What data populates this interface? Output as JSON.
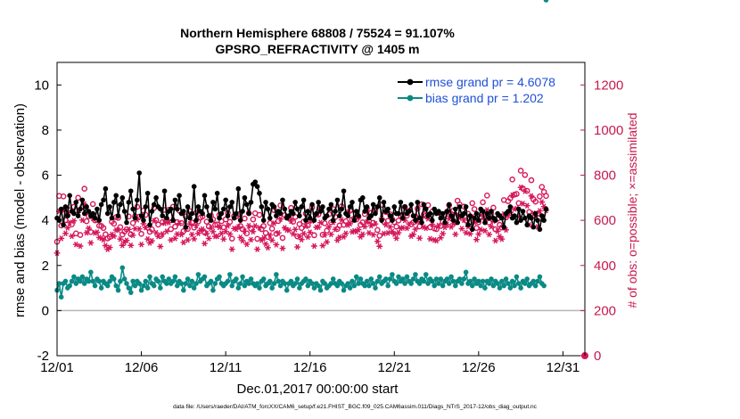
{
  "chart_data": {
    "type": "line",
    "title_line1": "Northern Hemisphere 68808 / 75524 = 91.107%",
    "title_line2": "GPSRO_REFRACTIVITY @ 1405 m",
    "xlabel": "Dec.01,2017 00:00:00 start",
    "ylabel": "rmse and bias (model - observation)",
    "ylabel_right": "# of obs: o=possible; ×=assimilated",
    "ylim": [
      -2,
      11
    ],
    "ylim_right": [
      0,
      1300
    ],
    "xlim": [
      1,
      32.3
    ],
    "yticks": [
      "-2",
      "0",
      "2",
      "4",
      "6",
      "8",
      "10"
    ],
    "yticks_right": [
      "0",
      "200",
      "400",
      "600",
      "800",
      "1000",
      "1200"
    ],
    "xticks": [
      {
        "day": 1,
        "label": "12/01"
      },
      {
        "day": 6,
        "label": "12/06"
      },
      {
        "day": 11,
        "label": "12/11"
      },
      {
        "day": 16,
        "label": "12/16"
      },
      {
        "day": 21,
        "label": "12/21"
      },
      {
        "day": 26,
        "label": "12/26"
      },
      {
        "day": 31,
        "label": "12/31"
      }
    ],
    "footnote": "data file: /Users/raeder/DAI/ATM_forcXX/CAM6_setup/f.e21.FHIST_BGC.f09_025.CAM6assim.011/Diags_NTrS_2017-12/obs_diag_output.nc",
    "colors": {
      "rmse": "#000000",
      "bias": "#0a8a85",
      "obs": "#d6175a",
      "legend_text": "#1f4fd8",
      "right_axis": "#c8184e",
      "zero_line": "#b5b5b5"
    },
    "series": [
      {
        "name": "rmse grand pr = 4.6078",
        "values": [
          4.1,
          4.0,
          4.5,
          3.8,
          4.6,
          4.2,
          5.1,
          4.4,
          4.3,
          4.8,
          4.2,
          4.5,
          4.9,
          4.3,
          4.6,
          4.4,
          4.2,
          4.3,
          4.1,
          4.5,
          4.0,
          4.7,
          4.9,
          5.4,
          4.3,
          4.6,
          4.1,
          4.8,
          5.1,
          4.2,
          4.7,
          5.0,
          4.4,
          3.9,
          4.8,
          5.3,
          4.5,
          4.1,
          4.9,
          6.1,
          4.2,
          4.0,
          4.6,
          5.2,
          3.8,
          4.4,
          4.7,
          5.0,
          4.6,
          4.5,
          4.2,
          5.3,
          4.1,
          4.4,
          4.5,
          4.0,
          4.9,
          4.5,
          5.1,
          4.3,
          4.4,
          3.7,
          4.6,
          4.1,
          4.3,
          5.5,
          4.0,
          4.6,
          4.4,
          4.3,
          5.1,
          4.6,
          4.2,
          4.0,
          4.8,
          4.5,
          5.2,
          4.1,
          4.3,
          4.5,
          4.9,
          4.2,
          4.6,
          4.8,
          4.1,
          4.3,
          5.4,
          4.0,
          4.4,
          5.0,
          4.7,
          4.3,
          4.8,
          5.6,
          5.7,
          5.5,
          5.2,
          4.6,
          4.0,
          4.8,
          4.5,
          4.1,
          4.7,
          4.6,
          4.2,
          4.4,
          4.3,
          4.9,
          4.5,
          4.1,
          4.2,
          4.4,
          4.3,
          4.8,
          4.5,
          4.2,
          4.6,
          4.9,
          4.0,
          4.4,
          4.1,
          4.7,
          4.0,
          4.3,
          4.8,
          4.4,
          4.6,
          4.1,
          4.2,
          4.5,
          4.7,
          4.0,
          4.4,
          4.9,
          4.2,
          4.5,
          5.3,
          4.3,
          4.2,
          4.6,
          4.8,
          4.0,
          4.4,
          4.2,
          4.9,
          5.0,
          4.4,
          4.6,
          4.1,
          4.2,
          4.7,
          4.3,
          4.6,
          5.0,
          4.0,
          4.8,
          4.4,
          4.5,
          4.2,
          4.0,
          4.6,
          4.3,
          4.3,
          4.8,
          4.1,
          4.6,
          4.3,
          4.4,
          4.7,
          4.2,
          4.0,
          4.8,
          4.1,
          3.9,
          4.7,
          4.5,
          4.2,
          4.3,
          4.0,
          4.5,
          4.3,
          4.4,
          4.1,
          4.3,
          3.9,
          4.4,
          4.7,
          4.2,
          4.0,
          4.5,
          3.9,
          4.6,
          4.2,
          4.3,
          4.6,
          3.8,
          4.2,
          3.6,
          4.1,
          4.3,
          4.0,
          4.5,
          4.4,
          3.9,
          4.3,
          4.1,
          4.4,
          4.1,
          4.0,
          4.3,
          4.2,
          4.1,
          3.7,
          4.3,
          4.4,
          4.6,
          4.1,
          4.2,
          3.9,
          4.5,
          4.0,
          4.4,
          4.1,
          3.8,
          4.2,
          4.1,
          3.7,
          4.3,
          4.0,
          3.6,
          4.2,
          4.0,
          4.5
        ]
      },
      {
        "name": "bias grand pr = 1.202",
        "values": [
          0.9,
          1.2,
          0.6,
          1.2,
          1.3,
          1.0,
          1.1,
          1.3,
          1.5,
          1.2,
          1.4,
          1.3,
          1.5,
          1.2,
          1.4,
          1.3,
          1.7,
          1.3,
          1.1,
          1.4,
          1.3,
          1.0,
          1.3,
          1.2,
          1.1,
          1.3,
          1.5,
          1.4,
          1.1,
          0.9,
          1.3,
          1.9,
          1.4,
          1.2,
          1.0,
          0.8,
          1.3,
          1.1,
          1.3,
          1.2,
          0.9,
          1.1,
          1.3,
          1.0,
          1.5,
          1.2,
          1.1,
          1.4,
          1.3,
          1.0,
          1.5,
          1.3,
          1.2,
          1.4,
          1.2,
          1.3,
          1.5,
          1.1,
          1.3,
          1.2,
          0.9,
          1.2,
          1.4,
          1.1,
          1.3,
          1.0,
          1.2,
          1.6,
          1.3,
          1.4,
          1.5,
          1.1,
          1.2,
          1.3,
          0.9,
          1.2,
          1.4,
          1.5,
          1.2,
          1.1,
          1.2,
          1.3,
          1.6,
          1.1,
          1.3,
          1.4,
          1.0,
          1.2,
          1.5,
          1.1,
          1.3,
          1.2,
          1.4,
          1.2,
          1.1,
          1.2,
          1.0,
          1.3,
          1.4,
          1.1,
          1.2,
          1.3,
          1.0,
          1.2,
          1.6,
          1.3,
          1.1,
          1.3,
          1.2,
          0.9,
          1.2,
          1.3,
          1.1,
          1.2,
          1.4,
          1.0,
          1.2,
          1.3,
          1.4,
          1.1,
          1.3,
          1.2,
          1.0,
          1.2,
          1.1,
          0.9,
          1.3,
          1.2,
          1.0,
          1.1,
          1.2,
          1.4,
          1.2,
          1.1,
          1.3,
          1.2,
          0.9,
          1.1,
          1.2,
          1.0,
          1.3,
          1.1,
          1.5,
          1.2,
          1.4,
          1.2,
          1.1,
          1.3,
          1.1,
          1.4,
          1.2,
          1.0,
          1.3,
          1.5,
          1.2,
          1.3,
          1.4,
          1.1,
          1.4,
          1.6,
          1.3,
          1.2,
          1.5,
          1.3,
          1.4,
          1.2,
          1.5,
          1.3,
          1.2,
          1.4,
          1.6,
          1.3,
          1.2,
          1.4,
          1.3,
          1.6,
          1.2,
          1.4,
          1.3,
          1.1,
          1.4,
          1.2,
          1.4,
          1.1,
          1.3,
          1.4,
          1.2,
          1.5,
          1.3,
          1.1,
          1.3,
          1.4,
          1.2,
          1.4,
          1.7,
          1.2,
          1.3,
          1.1,
          1.4,
          1.2,
          1.3,
          1.1,
          1.3,
          1.0,
          1.3,
          1.2,
          1.4,
          1.1,
          1.3,
          1.2,
          1.0,
          1.3,
          1.1,
          1.4,
          1.2,
          1.0,
          1.3,
          1.1,
          1.5,
          1.2,
          1.0,
          1.3,
          1.2,
          1.4,
          1.1,
          1.2,
          1.3,
          1.1,
          1.3,
          1.5,
          1.2,
          1.1
        ]
      },
      {
        "name": "possible obs",
        "values": [
          505,
          708,
          577,
          706,
          601,
          622,
          645,
          582,
          660,
          542,
          700,
          535,
          660,
          740,
          596,
          618,
          548,
          672,
          600,
          602,
          576,
          575,
          566,
          538,
          520,
          526,
          594,
          585,
          614,
          611,
          570,
          537,
          550,
          560,
          617,
          538,
          588,
          618,
          660,
          616,
          540,
          643,
          624,
          568,
          549,
          560,
          655,
          601,
          581,
          531,
          592,
          646,
          603,
          647,
          561,
          660,
          572,
          592,
          643,
          588,
          552,
          618,
          562,
          641,
          590,
          568,
          634,
          595,
          612,
          617,
          546,
          594,
          573,
          621,
          604,
          580,
          582,
          624,
          596,
          569,
          604,
          633,
          593,
          519,
          619,
          617,
          627,
          575,
          561,
          608,
          542,
          632,
          563,
          604,
          631,
          518,
          624,
          561,
          575,
          544,
          526,
          588,
          563,
          645,
          540,
          597,
          666,
          522,
          623,
          613,
          610,
          655,
          594,
          615,
          529,
          583,
          566,
          594,
          630,
          577,
          601,
          657,
          534,
          626,
          626,
          648,
          536,
          587,
          554,
          627,
          591,
          650,
          615,
          562,
          577,
          662,
          580,
          596,
          636,
          643,
          603,
          608,
          604,
          615,
          580,
          591,
          628,
          652,
          598,
          633,
          589,
          642,
          557,
          532,
          669,
          594,
          637,
          598,
          627,
          604,
          592,
          572,
          599,
          621,
          623,
          659,
          621,
          642,
          582,
          591,
          617,
          652,
          573,
          671,
          627,
          621,
          667,
          569,
          639,
          564,
          561,
          634,
          575,
          594,
          625,
          638,
          667,
          628,
          643,
          591,
          687,
          670,
          619,
          661,
          599,
          629,
          593,
          676,
          650,
          566,
          592,
          614,
          680,
          609,
          710,
          590,
          629,
          656,
          560,
          607,
          580,
          568,
          690,
          613,
          685,
          698,
          781,
          714,
          717,
          676,
          820,
          741,
          801,
          731,
          637,
          778,
          693,
          683,
          628,
          706,
          748,
          726,
          708,
          790,
          679,
          787
        ]
      },
      {
        "name": "assimilated obs",
        "values": [
          455,
          640,
          520,
          643,
          542,
          567,
          590,
          530,
          598,
          493,
          635,
          486,
          601,
          672,
          545,
          565,
          500,
          609,
          544,
          547,
          524,
          521,
          514,
          488,
          472,
          480,
          537,
          530,
          557,
          557,
          517,
          489,
          503,
          511,
          560,
          489,
          534,
          563,
          603,
          562,
          493,
          585,
          568,
          517,
          500,
          509,
          598,
          545,
          529,
          484,
          539,
          587,
          551,
          590,
          513,
          602,
          520,
          539,
          586,
          537,
          502,
          562,
          513,
          584,
          537,
          518,
          577,
          542,
          556,
          561,
          497,
          541,
          520,
          565,
          550,
          529,
          529,
          569,
          542,
          517,
          550,
          576,
          539,
          472,
          564,
          561,
          571,
          524,
          510,
          552,
          494,
          576,
          514,
          550,
          575,
          472,
          567,
          512,
          522,
          495,
          479,
          535,
          512,
          587,
          492,
          544,
          606,
          476,
          567,
          558,
          556,
          597,
          540,
          560,
          482,
          530,
          515,
          541,
          574,
          526,
          547,
          597,
          486,
          569,
          570,
          590,
          488,
          535,
          504,
          571,
          538,
          591,
          560,
          512,
          525,
          602,
          527,
          542,
          579,
          585,
          549,
          553,
          550,
          559,
          527,
          538,
          572,
          593,
          544,
          576,
          536,
          584,
          507,
          485,
          609,
          541,
          580,
          544,
          571,
          550,
          539,
          521,
          545,
          565,
          567,
          600,
          565,
          584,
          530,
          538,
          561,
          594,
          521,
          611,
          570,
          565,
          607,
          518,
          582,
          513,
          510,
          577,
          523,
          541,
          569,
          581,
          607,
          571,
          585,
          538,
          625,
          610,
          563,
          601,
          545,
          572,
          540,
          615,
          591,
          515,
          539,
          559,
          619,
          554,
          646,
          537,
          572,
          597,
          510,
          552,
          528,
          517,
          628,
          558,
          623,
          635,
          711,
          650,
          652,
          615,
          746,
          674,
          729,
          665,
          580,
          708,
          631,
          622,
          571,
          642,
          681,
          661,
          644,
          719,
          618,
          716
        ]
      }
    ],
    "legend": {
      "rmse_label": "rmse grand pr = 4.6078",
      "bias_label": "bias grand pr = 1.202"
    }
  }
}
